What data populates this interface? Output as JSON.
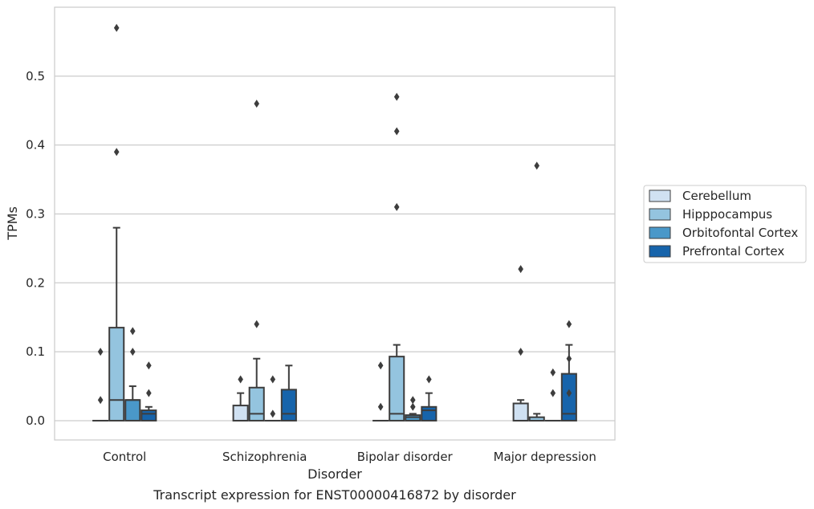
{
  "chart_data": {
    "type": "box",
    "title": "",
    "caption": "Transcript expression for ENST00000416872 by disorder",
    "xlabel": "Disorder",
    "ylabel": "TPMs",
    "ylim": [
      -0.028,
      0.6
    ],
    "yticks": [
      0.0,
      0.1,
      0.2,
      0.3,
      0.4,
      0.5
    ],
    "ytick_labels": [
      "0.0",
      "0.1",
      "0.2",
      "0.3",
      "0.4",
      "0.5"
    ],
    "grid": "horizontal",
    "legend_position": "right",
    "categories": [
      "Control",
      "Schizophrenia",
      "Bipolar disorder",
      "Major depression"
    ],
    "series": [
      {
        "name": "Cerebellum",
        "color": "#d0e1f2",
        "boxes": [
          {
            "q1": 0,
            "median": 0,
            "q3": 0,
            "whisker_low": 0,
            "whisker_high": 0,
            "outliers": [
              0.03,
              0.1
            ]
          },
          {
            "q1": 0,
            "median": 0,
            "q3": 0.022,
            "whisker_low": 0,
            "whisker_high": 0.04,
            "outliers": [
              0.06
            ]
          },
          {
            "q1": 0,
            "median": 0,
            "q3": 0,
            "whisker_low": 0,
            "whisker_high": 0,
            "outliers": [
              0.02,
              0.08
            ]
          },
          {
            "q1": 0,
            "median": 0,
            "q3": 0.025,
            "whisker_low": 0,
            "whisker_high": 0.03,
            "outliers": [
              0.1,
              0.22
            ]
          }
        ]
      },
      {
        "name": "Hipppocampus",
        "color": "#94c4df",
        "boxes": [
          {
            "q1": 0,
            "median": 0.03,
            "q3": 0.135,
            "whisker_low": 0,
            "whisker_high": 0.28,
            "outliers": [
              0.39,
              0.57
            ]
          },
          {
            "q1": 0,
            "median": 0.01,
            "q3": 0.048,
            "whisker_low": 0,
            "whisker_high": 0.09,
            "outliers": [
              0.14,
              0.46
            ]
          },
          {
            "q1": 0,
            "median": 0.01,
            "q3": 0.093,
            "whisker_low": 0,
            "whisker_high": 0.11,
            "outliers": [
              0.31,
              0.42,
              0.47
            ]
          },
          {
            "q1": 0,
            "median": 0,
            "q3": 0.005,
            "whisker_low": 0,
            "whisker_high": 0.01,
            "outliers": [
              0.37
            ]
          }
        ]
      },
      {
        "name": "Orbitofontal Cortex",
        "color": "#4a98c9",
        "boxes": [
          {
            "q1": 0,
            "median": 0.03,
            "q3": 0.03,
            "whisker_low": 0,
            "whisker_high": 0.05,
            "outliers": [
              0.1,
              0.13
            ]
          },
          {
            "q1": 0,
            "median": 0,
            "q3": 0,
            "whisker_low": 0,
            "whisker_high": 0,
            "outliers": [
              0.01,
              0.06
            ]
          },
          {
            "q1": 0,
            "median": 0.005,
            "q3": 0.008,
            "whisker_low": 0,
            "whisker_high": 0.01,
            "outliers": [
              0.02,
              0.03
            ]
          },
          {
            "q1": 0,
            "median": 0,
            "q3": 0,
            "whisker_low": 0,
            "whisker_high": 0,
            "outliers": [
              0.04,
              0.07
            ]
          }
        ]
      },
      {
        "name": "Prefrontal Cortex",
        "color": "#1764ab",
        "boxes": [
          {
            "q1": 0,
            "median": 0.01,
            "q3": 0.015,
            "whisker_low": 0,
            "whisker_high": 0.02,
            "outliers": [
              0.04,
              0.08
            ]
          },
          {
            "q1": 0,
            "median": 0.01,
            "q3": 0.045,
            "whisker_low": 0,
            "whisker_high": 0.08,
            "outliers": []
          },
          {
            "q1": 0,
            "median": 0.015,
            "q3": 0.02,
            "whisker_low": 0,
            "whisker_high": 0.04,
            "outliers": [
              0.06
            ]
          },
          {
            "q1": 0,
            "median": 0.01,
            "q3": 0.068,
            "whisker_low": 0,
            "whisker_high": 0.11,
            "outliers": [
              0.04,
              0.09,
              0.14
            ]
          }
        ]
      }
    ]
  }
}
